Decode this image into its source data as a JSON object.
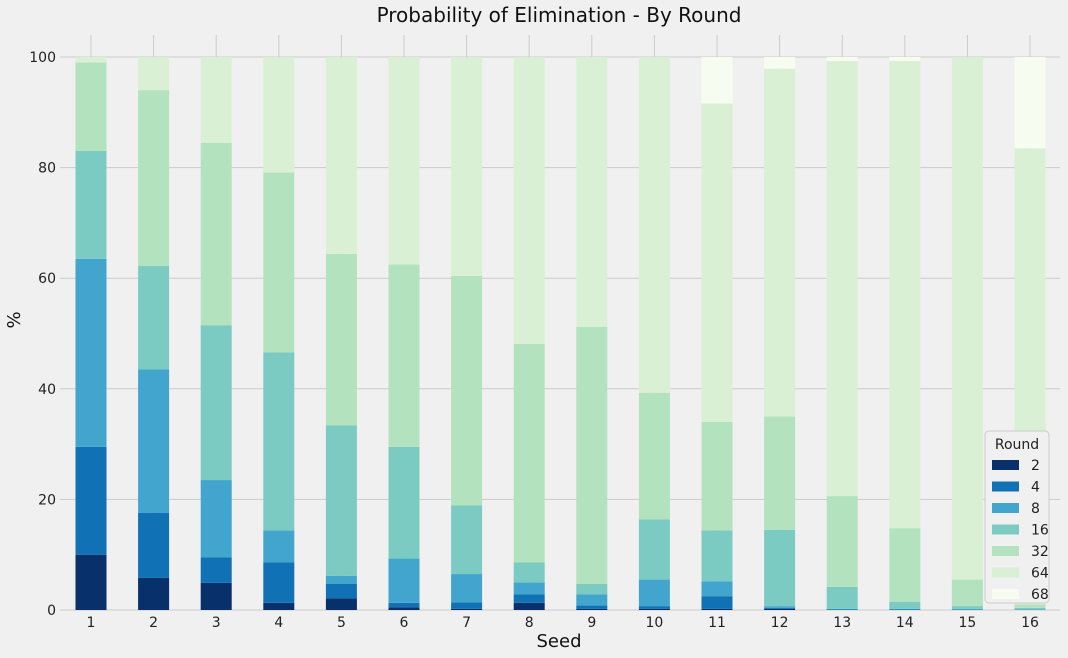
{
  "chart_data": {
    "type": "bar",
    "stacked": true,
    "title": "Probability of Elimination - By Round",
    "xlabel": "Seed",
    "ylabel": "%",
    "ylim": [
      0,
      100
    ],
    "yticks": [
      0,
      20,
      40,
      60,
      80,
      100
    ],
    "grid": true,
    "legend": {
      "title": "Round",
      "placement": "bottom-right"
    },
    "categories": [
      "1",
      "2",
      "3",
      "4",
      "5",
      "6",
      "7",
      "8",
      "9",
      "10",
      "11",
      "12",
      "13",
      "14",
      "15",
      "16"
    ],
    "series": [
      {
        "name": "2",
        "color": "#08306b",
        "values": [
          10.0,
          5.8,
          4.9,
          1.3,
          2.1,
          0.5,
          0.2,
          1.3,
          0.2,
          0.2,
          0.2,
          0.2,
          0.0,
          0.0,
          0.0,
          0.0
        ]
      },
      {
        "name": "4",
        "color": "#1171b5",
        "values": [
          19.5,
          11.8,
          4.6,
          7.3,
          2.6,
          0.8,
          1.2,
          1.5,
          0.6,
          0.5,
          2.3,
          0.2,
          0.1,
          0.1,
          0.0,
          0.0
        ]
      },
      {
        "name": "8",
        "color": "#42a5ce",
        "values": [
          34.0,
          25.9,
          14.0,
          5.8,
          1.5,
          8.0,
          5.1,
          2.2,
          2.0,
          4.8,
          2.7,
          0.3,
          0.1,
          0.1,
          0.2,
          0.1
        ]
      },
      {
        "name": "16",
        "color": "#7bcbc3",
        "values": [
          19.5,
          18.7,
          28.0,
          32.2,
          27.2,
          20.2,
          12.4,
          3.6,
          1.9,
          10.9,
          9.2,
          13.8,
          4.0,
          1.3,
          0.5,
          0.3
        ]
      },
      {
        "name": "32",
        "color": "#b3e2be",
        "values": [
          16.0,
          31.8,
          33.0,
          32.5,
          31.0,
          33.0,
          41.5,
          39.5,
          46.5,
          22.9,
          19.6,
          20.5,
          16.4,
          13.3,
          4.8,
          0.6
        ]
      },
      {
        "name": "64",
        "color": "#d9f0d5",
        "values": [
          1.0,
          6.0,
          15.5,
          20.9,
          35.6,
          37.5,
          39.6,
          51.9,
          48.8,
          60.7,
          57.6,
          62.9,
          78.7,
          84.5,
          94.5,
          82.5
        ]
      },
      {
        "name": "68",
        "color": "#f7fcf0",
        "values": [
          0.0,
          0.0,
          0.0,
          0.0,
          0.0,
          0.0,
          0.0,
          0.0,
          0.0,
          0.0,
          8.4,
          2.1,
          0.7,
          0.7,
          0.0,
          16.5
        ]
      }
    ]
  }
}
